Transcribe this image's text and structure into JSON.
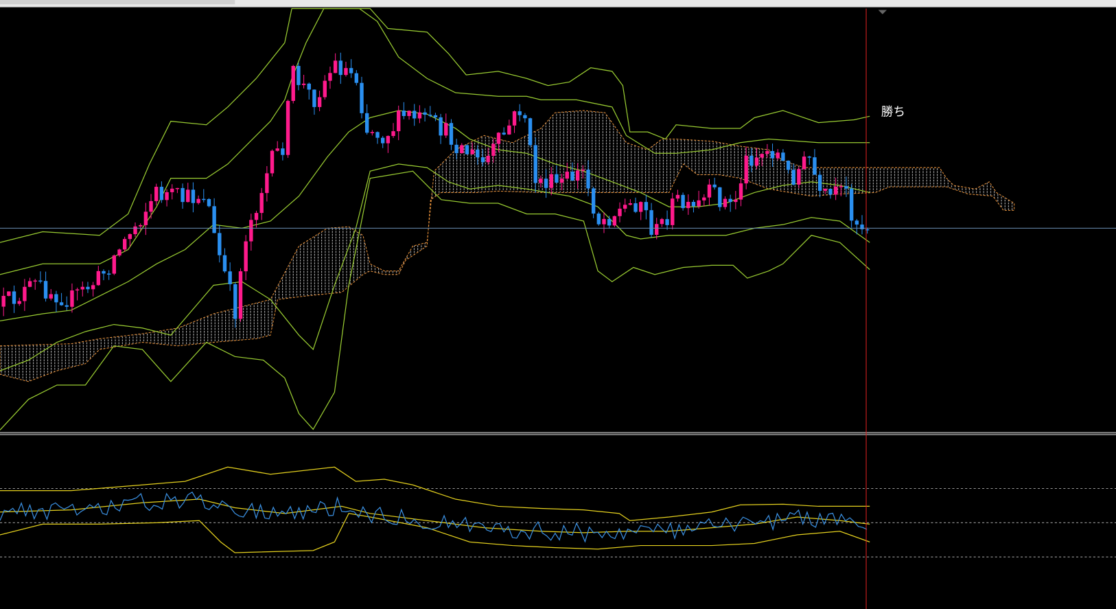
{
  "annotation": "勝ち"
}
